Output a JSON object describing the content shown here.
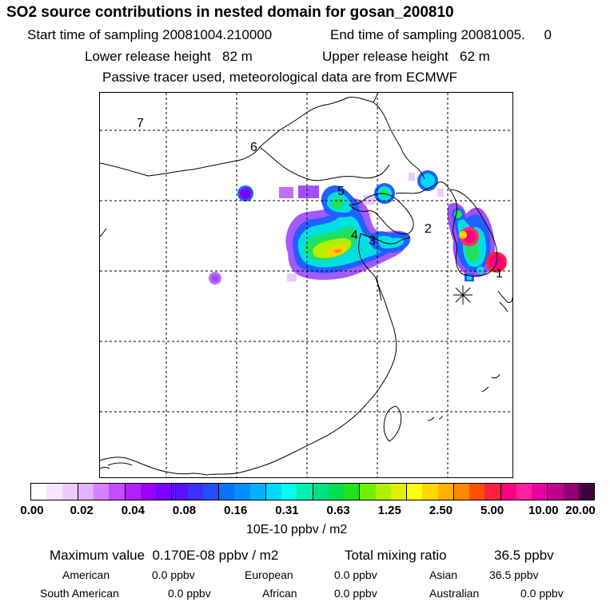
{
  "header": {
    "title": "SO2 source contributions in nested domain for gosan_200810",
    "start_label": "Start time of sampling 20081004.210000",
    "end_label": "End time of sampling 20081005.     0",
    "lower_label": "Lower release height   82 m",
    "upper_label": "Upper release height   62 m",
    "tracer_note": "Passive tracer used, meteorological data are from ECMWF"
  },
  "map": {
    "region_labels": [
      "1",
      "2",
      "3",
      "4",
      "5",
      "6",
      "7"
    ],
    "receptor_marker": "asterisk-icon"
  },
  "colorbar": {
    "colors": [
      "#ffffff",
      "#f6e6ff",
      "#ecccff",
      "#e2b3ff",
      "#d480ff",
      "#c64dff",
      "#b020ff",
      "#9a00ff",
      "#7a00ff",
      "#5a10ff",
      "#3b30ff",
      "#2050ff",
      "#0a70ff",
      "#0090ff",
      "#00b0ff",
      "#00d8ff",
      "#00ffee",
      "#00f0b0",
      "#00e080",
      "#00e050",
      "#20e020",
      "#70f000",
      "#b0f000",
      "#e0f000",
      "#ffff00",
      "#ffd800",
      "#ffb000",
      "#ff8800",
      "#ff5000",
      "#ff2040",
      "#ff0080",
      "#ff20a0",
      "#e800a0",
      "#c00090",
      "#900070",
      "#400040"
    ],
    "ticks": [
      "0.00",
      "0.02",
      "0.04",
      "0.08",
      "0.16",
      "0.31",
      "0.63",
      "1.25",
      "2.50",
      "5.00",
      "10.00",
      "20.00"
    ],
    "unit": "10E-10 ppbv / m2"
  },
  "footer": {
    "max_label": "Maximum value  0.170E-08 ppbv / m2",
    "total_label": "Total mixing ratio",
    "total_value": "36.5 ppbv",
    "sources": [
      {
        "name": "American",
        "value": "0.0 ppbv"
      },
      {
        "name": "European",
        "value": "0.0 ppbv"
      },
      {
        "name": "Asian",
        "value": "36.5 ppbv"
      },
      {
        "name": "South American",
        "value": "0.0 ppbv"
      },
      {
        "name": "African",
        "value": "0.0 ppbv"
      },
      {
        "name": "Australian",
        "value": "0.0 ppbv"
      }
    ]
  }
}
